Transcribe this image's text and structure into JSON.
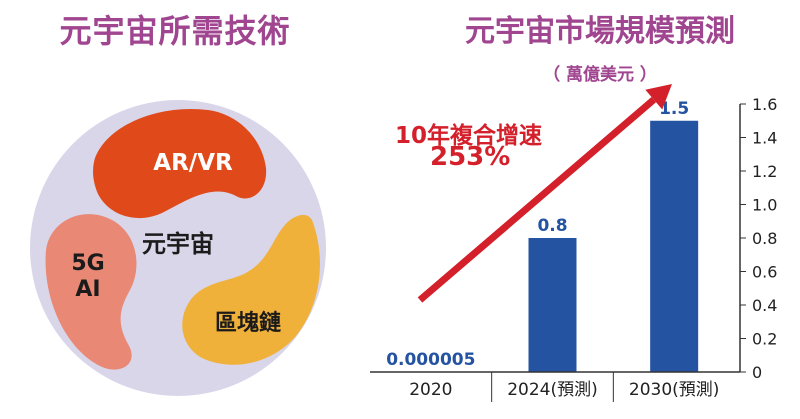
{
  "left_panel": {
    "title": "元宇宙所需技術",
    "title_color": "#a0458f",
    "circle_color": "#d9d6ea",
    "center_label": "元宇宙",
    "petals": [
      {
        "label": "AR/VR",
        "color": "#e04a1a"
      },
      {
        "label": "5G\nAI",
        "color": "#e98875"
      },
      {
        "label": "區塊鏈",
        "color": "#f0b13a"
      }
    ]
  },
  "right_panel": {
    "title": "元宇宙市場規模預測",
    "title_color": "#a0458f",
    "unit": "（ 萬億美元 ）",
    "cagr_line1": "10年複合增速",
    "cagr_line2": "253%",
    "arrow_color": "#d4202b",
    "bar_color": "#2453a2",
    "label_color": "#2453a2"
  },
  "chart_data": {
    "type": "bar",
    "categories": [
      "2020",
      "2024(預測)",
      "2030(預測)"
    ],
    "values": [
      5e-06,
      0.8,
      1.5
    ],
    "data_labels": [
      "0.000005",
      "0.8",
      "1.5"
    ],
    "ylim": [
      0,
      1.6
    ],
    "yticks": [
      "0",
      "0.2",
      "0.4",
      "0.6",
      "0.8",
      "1.0",
      "1.2",
      "1.4",
      "1.6"
    ],
    "xlabel": "",
    "ylabel": "",
    "axis_position": "right",
    "grid": false
  }
}
